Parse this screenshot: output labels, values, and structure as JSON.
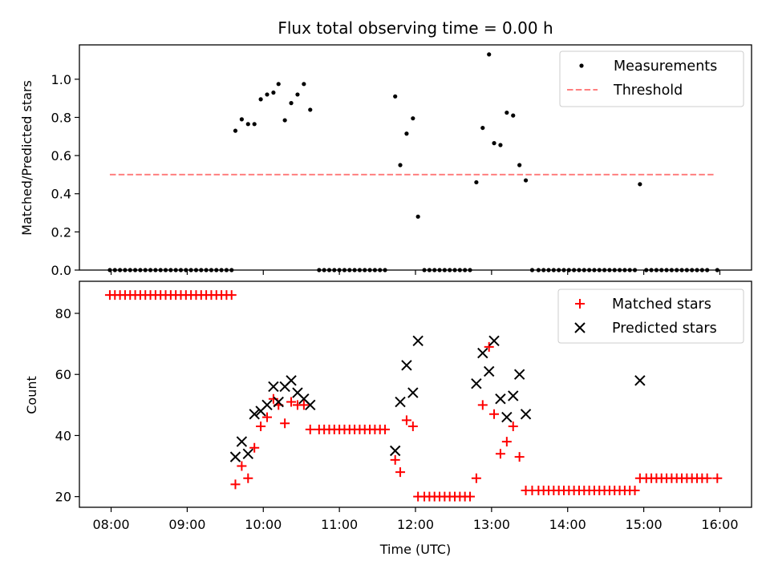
{
  "chart_data": [
    {
      "type": "scatter",
      "title": "Flux total observing time = 0.00 h",
      "xlabel": "",
      "ylabel": "Matched/Predicted stars",
      "ylim": [
        0.0,
        1.18
      ],
      "yticks": [
        0.0,
        0.2,
        0.4,
        0.6,
        0.8,
        1.0
      ],
      "ytick_labels": [
        "0.0",
        "0.2",
        "0.4",
        "0.6",
        "0.8",
        "1.0"
      ],
      "grid": false,
      "legend_position": "top-right",
      "series": [
        {
          "name": "Measurements",
          "marker": "dot",
          "color": "#000000",
          "points": [
            [
              "07:59",
              0
            ],
            [
              "08:03",
              0
            ],
            [
              "08:07",
              0
            ],
            [
              "08:11",
              0
            ],
            [
              "08:15",
              0
            ],
            [
              "08:19",
              0
            ],
            [
              "08:23",
              0
            ],
            [
              "08:27",
              0
            ],
            [
              "08:31",
              0
            ],
            [
              "08:35",
              0
            ],
            [
              "08:39",
              0
            ],
            [
              "08:43",
              0
            ],
            [
              "08:47",
              0
            ],
            [
              "08:51",
              0
            ],
            [
              "08:55",
              0
            ],
            [
              "08:59",
              0
            ],
            [
              "09:03",
              0
            ],
            [
              "09:07",
              0
            ],
            [
              "09:11",
              0
            ],
            [
              "09:15",
              0
            ],
            [
              "09:19",
              0
            ],
            [
              "09:23",
              0
            ],
            [
              "09:27",
              0
            ],
            [
              "09:31",
              0
            ],
            [
              "09:35",
              0
            ],
            [
              "09:38",
              0.73
            ],
            [
              "09:43",
              0.79
            ],
            [
              "09:48",
              0.765
            ],
            [
              "09:53",
              0.765
            ],
            [
              "09:58",
              0.895
            ],
            [
              "10:03",
              0.92
            ],
            [
              "10:08",
              0.93
            ],
            [
              "10:12",
              0.975
            ],
            [
              "10:17",
              0.785
            ],
            [
              "10:22",
              0.875
            ],
            [
              "10:27",
              0.92
            ],
            [
              "10:32",
              0.975
            ],
            [
              "10:37",
              0.84
            ],
            [
              "10:44",
              0
            ],
            [
              "10:48",
              0
            ],
            [
              "10:52",
              0
            ],
            [
              "10:56",
              0
            ],
            [
              "11:00",
              0
            ],
            [
              "11:04",
              0
            ],
            [
              "11:08",
              0
            ],
            [
              "11:12",
              0
            ],
            [
              "11:16",
              0
            ],
            [
              "11:20",
              0
            ],
            [
              "11:24",
              0
            ],
            [
              "11:28",
              0
            ],
            [
              "11:32",
              0
            ],
            [
              "11:36",
              0
            ],
            [
              "11:44",
              0.91
            ],
            [
              "11:48",
              0.55
            ],
            [
              "11:53",
              0.715
            ],
            [
              "11:58",
              0.795
            ],
            [
              "12:02",
              0.28
            ],
            [
              "12:07",
              0
            ],
            [
              "12:11",
              0
            ],
            [
              "12:15",
              0
            ],
            [
              "12:19",
              0
            ],
            [
              "12:23",
              0
            ],
            [
              "12:27",
              0
            ],
            [
              "12:31",
              0
            ],
            [
              "12:35",
              0
            ],
            [
              "12:39",
              0
            ],
            [
              "12:43",
              0
            ],
            [
              "12:48",
              0.46
            ],
            [
              "12:53",
              0.745
            ],
            [
              "12:58",
              1.13
            ],
            [
              "13:02",
              0.665
            ],
            [
              "13:07",
              0.655
            ],
            [
              "13:12",
              0.825
            ],
            [
              "13:17",
              0.81
            ],
            [
              "13:22",
              0.55
            ],
            [
              "13:27",
              0.47
            ],
            [
              "13:32",
              0
            ],
            [
              "13:37",
              0
            ],
            [
              "13:41",
              0
            ],
            [
              "13:45",
              0
            ],
            [
              "13:49",
              0
            ],
            [
              "13:53",
              0
            ],
            [
              "13:57",
              0
            ],
            [
              "14:01",
              0
            ],
            [
              "14:05",
              0
            ],
            [
              "14:09",
              0
            ],
            [
              "14:13",
              0
            ],
            [
              "14:17",
              0
            ],
            [
              "14:21",
              0
            ],
            [
              "14:25",
              0
            ],
            [
              "14:29",
              0
            ],
            [
              "14:33",
              0
            ],
            [
              "14:37",
              0
            ],
            [
              "14:41",
              0
            ],
            [
              "14:45",
              0
            ],
            [
              "14:49",
              0
            ],
            [
              "14:53",
              0
            ],
            [
              "14:57",
              0.45
            ],
            [
              "15:02",
              0
            ],
            [
              "15:06",
              0
            ],
            [
              "15:10",
              0
            ],
            [
              "15:14",
              0
            ],
            [
              "15:18",
              0
            ],
            [
              "15:22",
              0
            ],
            [
              "15:26",
              0
            ],
            [
              "15:30",
              0
            ],
            [
              "15:34",
              0
            ],
            [
              "15:38",
              0
            ],
            [
              "15:42",
              0
            ],
            [
              "15:46",
              0
            ],
            [
              "15:50",
              0
            ],
            [
              "15:58",
              0
            ]
          ]
        },
        {
          "name": "Threshold",
          "type": "line",
          "style": "dashed",
          "color": "#ff7f7f",
          "points": [
            [
              "07:59",
              0.5
            ],
            [
              "15:55",
              0.5
            ]
          ]
        }
      ]
    },
    {
      "type": "scatter",
      "title": "",
      "xlabel": "Time (UTC)",
      "ylabel": "Count",
      "ylim": [
        16.5,
        90.5
      ],
      "yticks": [
        20,
        40,
        60,
        80
      ],
      "ytick_labels": [
        "20",
        "40",
        "60",
        "80"
      ],
      "xlim": [
        "07:35",
        "16:25"
      ],
      "xticks": [
        "08:00",
        "09:00",
        "10:00",
        "11:00",
        "12:00",
        "13:00",
        "14:00",
        "15:00",
        "16:00"
      ],
      "xtick_labels": [
        "08:00",
        "09:00",
        "10:00",
        "11:00",
        "12:00",
        "13:00",
        "14:00",
        "15:00",
        "16:00"
      ],
      "grid": false,
      "legend_position": "top-right",
      "series": [
        {
          "name": "Matched stars",
          "marker": "plus",
          "color": "#ff0000",
          "points": [
            [
              "07:59",
              86
            ],
            [
              "08:03",
              86
            ],
            [
              "08:07",
              86
            ],
            [
              "08:11",
              86
            ],
            [
              "08:15",
              86
            ],
            [
              "08:19",
              86
            ],
            [
              "08:23",
              86
            ],
            [
              "08:27",
              86
            ],
            [
              "08:31",
              86
            ],
            [
              "08:35",
              86
            ],
            [
              "08:39",
              86
            ],
            [
              "08:43",
              86
            ],
            [
              "08:47",
              86
            ],
            [
              "08:51",
              86
            ],
            [
              "08:55",
              86
            ],
            [
              "08:59",
              86
            ],
            [
              "09:03",
              86
            ],
            [
              "09:07",
              86
            ],
            [
              "09:11",
              86
            ],
            [
              "09:15",
              86
            ],
            [
              "09:19",
              86
            ],
            [
              "09:23",
              86
            ],
            [
              "09:27",
              86
            ],
            [
              "09:31",
              86
            ],
            [
              "09:35",
              86
            ],
            [
              "09:38",
              24
            ],
            [
              "09:43",
              30
            ],
            [
              "09:48",
              26
            ],
            [
              "09:53",
              36
            ],
            [
              "09:58",
              43
            ],
            [
              "10:03",
              46
            ],
            [
              "10:08",
              52
            ],
            [
              "10:12",
              50
            ],
            [
              "10:17",
              44
            ],
            [
              "10:22",
              51
            ],
            [
              "10:27",
              50
            ],
            [
              "10:32",
              50
            ],
            [
              "10:37",
              42
            ],
            [
              "10:44",
              42
            ],
            [
              "10:48",
              42
            ],
            [
              "10:52",
              42
            ],
            [
              "10:56",
              42
            ],
            [
              "11:00",
              42
            ],
            [
              "11:04",
              42
            ],
            [
              "11:08",
              42
            ],
            [
              "11:12",
              42
            ],
            [
              "11:16",
              42
            ],
            [
              "11:20",
              42
            ],
            [
              "11:24",
              42
            ],
            [
              "11:28",
              42
            ],
            [
              "11:32",
              42
            ],
            [
              "11:36",
              42
            ],
            [
              "11:44",
              32
            ],
            [
              "11:48",
              28
            ],
            [
              "11:53",
              45
            ],
            [
              "11:58",
              43
            ],
            [
              "12:02",
              20
            ],
            [
              "12:07",
              20
            ],
            [
              "12:11",
              20
            ],
            [
              "12:15",
              20
            ],
            [
              "12:19",
              20
            ],
            [
              "12:23",
              20
            ],
            [
              "12:27",
              20
            ],
            [
              "12:31",
              20
            ],
            [
              "12:35",
              20
            ],
            [
              "12:39",
              20
            ],
            [
              "12:43",
              20
            ],
            [
              "12:48",
              26
            ],
            [
              "12:53",
              50
            ],
            [
              "12:58",
              69
            ],
            [
              "13:02",
              47
            ],
            [
              "13:07",
              34
            ],
            [
              "13:12",
              38
            ],
            [
              "13:17",
              43
            ],
            [
              "13:22",
              33
            ],
            [
              "13:27",
              22
            ],
            [
              "13:32",
              22
            ],
            [
              "13:37",
              22
            ],
            [
              "13:41",
              22
            ],
            [
              "13:45",
              22
            ],
            [
              "13:49",
              22
            ],
            [
              "13:53",
              22
            ],
            [
              "13:57",
              22
            ],
            [
              "14:01",
              22
            ],
            [
              "14:05",
              22
            ],
            [
              "14:09",
              22
            ],
            [
              "14:13",
              22
            ],
            [
              "14:17",
              22
            ],
            [
              "14:21",
              22
            ],
            [
              "14:25",
              22
            ],
            [
              "14:29",
              22
            ],
            [
              "14:33",
              22
            ],
            [
              "14:37",
              22
            ],
            [
              "14:41",
              22
            ],
            [
              "14:45",
              22
            ],
            [
              "14:49",
              22
            ],
            [
              "14:53",
              22
            ],
            [
              "14:57",
              26
            ],
            [
              "15:02",
              26
            ],
            [
              "15:06",
              26
            ],
            [
              "15:10",
              26
            ],
            [
              "15:14",
              26
            ],
            [
              "15:18",
              26
            ],
            [
              "15:22",
              26
            ],
            [
              "15:26",
              26
            ],
            [
              "15:30",
              26
            ],
            [
              "15:34",
              26
            ],
            [
              "15:38",
              26
            ],
            [
              "15:42",
              26
            ],
            [
              "15:46",
              26
            ],
            [
              "15:50",
              26
            ],
            [
              "15:58",
              26
            ]
          ]
        },
        {
          "name": "Predicted stars",
          "marker": "x",
          "color": "#000000",
          "points": [
            [
              "09:38",
              33
            ],
            [
              "09:43",
              38
            ],
            [
              "09:48",
              34
            ],
            [
              "09:53",
              47
            ],
            [
              "09:58",
              48
            ],
            [
              "10:03",
              50
            ],
            [
              "10:08",
              56
            ],
            [
              "10:12",
              51
            ],
            [
              "10:17",
              56
            ],
            [
              "10:22",
              58
            ],
            [
              "10:27",
              54
            ],
            [
              "10:32",
              52
            ],
            [
              "10:37",
              50
            ],
            [
              "11:44",
              35
            ],
            [
              "11:48",
              51
            ],
            [
              "11:53",
              63
            ],
            [
              "11:58",
              54
            ],
            [
              "12:02",
              71
            ],
            [
              "12:48",
              57
            ],
            [
              "12:53",
              67
            ],
            [
              "12:58",
              61
            ],
            [
              "13:02",
              71
            ],
            [
              "13:07",
              52
            ],
            [
              "13:12",
              46
            ],
            [
              "13:17",
              53
            ],
            [
              "13:22",
              60
            ],
            [
              "13:27",
              47
            ],
            [
              "14:57",
              58
            ]
          ]
        }
      ]
    }
  ]
}
